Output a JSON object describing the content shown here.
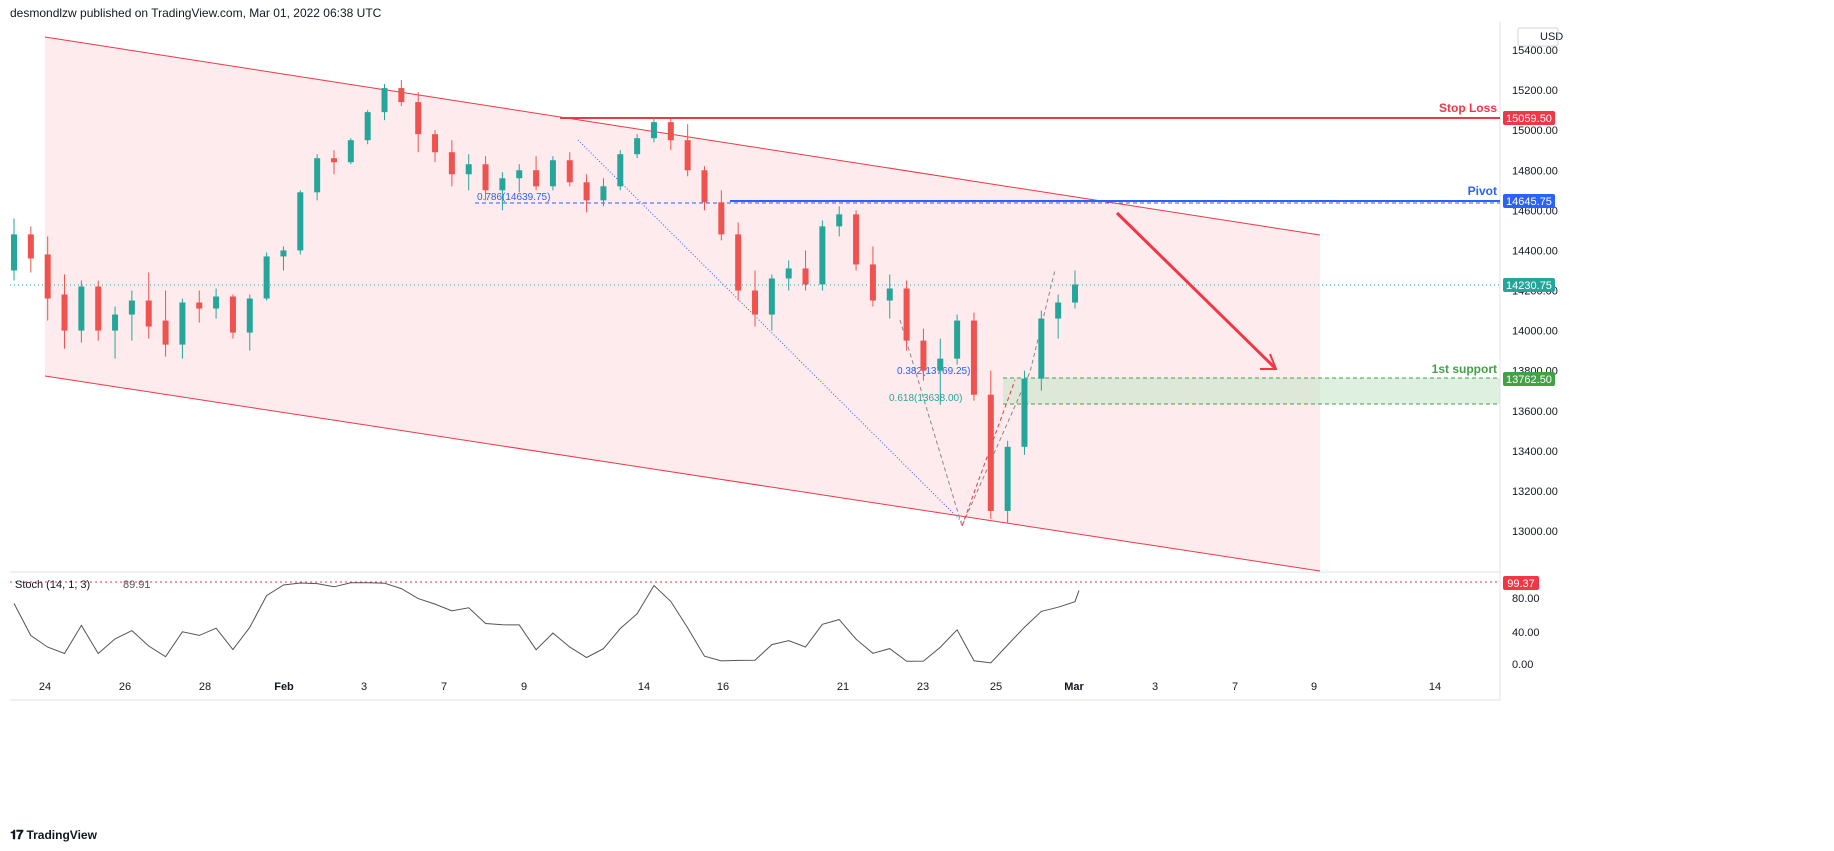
{
  "header": {
    "publisher": "desmondlzw published on TradingView.com, Mar 01, 2022 06:38 UTC"
  },
  "footer": {
    "logo": "𝟏𝟕",
    "brand": "TradingView"
  },
  "price_axis": {
    "currency": "USD",
    "ticks": [
      "15400.00",
      "15200.00",
      "15000.00",
      "14800.00",
      "14600.00",
      "14400.00",
      "14200.00",
      "14000.00",
      "13800.00",
      "13600.00",
      "13400.00",
      "13200.00",
      "13000.00"
    ]
  },
  "time_axis": {
    "ticks": [
      "24",
      "26",
      "28",
      "Feb",
      "3",
      "7",
      "9",
      "14",
      "16",
      "21",
      "23",
      "25",
      "Mar",
      "3",
      "7",
      "9",
      "14"
    ]
  },
  "colors": {
    "up": "#26a69a",
    "down": "#ef5350",
    "channel_fill": "#fde7ea",
    "channel_line": "#f23645",
    "pivot": "#2962ff",
    "support": "#43a047",
    "stop": "#f23645"
  },
  "levels": {
    "stop_loss": {
      "label": "Stop Loss",
      "price": "15059.50"
    },
    "pivot": {
      "label": "Pivot",
      "price": "14645.75"
    },
    "last": {
      "price": "14230.75"
    },
    "support": {
      "label": "1st support",
      "price": "13762.50"
    }
  },
  "fib": {
    "f786": "0.786(14639.75)",
    "f382": "0.382(13769.25)",
    "f618": "0.618(13638.00)"
  },
  "indicator": {
    "name": "Stoch (14, 1, 3)",
    "value": "89.91",
    "last_label": "99.37",
    "ticks": [
      "80.00",
      "40.00",
      "0.00"
    ]
  },
  "chart_data": {
    "type": "candlestick",
    "title": "",
    "ylabel": "USD",
    "ylim": [
      12800,
      15500
    ],
    "x_ticks": [
      "24",
      "26",
      "28",
      "Feb",
      "3",
      "7",
      "9",
      "14",
      "16",
      "21",
      "23",
      "25",
      "Mar",
      "3",
      "7",
      "9",
      "14"
    ],
    "ohlc_approx": [
      [
        14300,
        14560,
        14250,
        14480
      ],
      [
        14480,
        14520,
        14290,
        14360
      ],
      [
        14380,
        14470,
        14050,
        14160
      ],
      [
        14180,
        14280,
        13910,
        14000
      ],
      [
        14000,
        14250,
        13940,
        14220
      ],
      [
        14220,
        14250,
        13950,
        14000
      ],
      [
        14000,
        14120,
        13860,
        14080
      ],
      [
        14080,
        14200,
        13950,
        14150
      ],
      [
        14150,
        14290,
        13960,
        14020
      ],
      [
        14050,
        14200,
        13870,
        13930
      ],
      [
        13930,
        14160,
        13860,
        14140
      ],
      [
        14140,
        14200,
        14040,
        14110
      ],
      [
        14110,
        14210,
        14060,
        14170
      ],
      [
        14170,
        14180,
        13960,
        13990
      ],
      [
        13990,
        14180,
        13900,
        14160
      ],
      [
        14160,
        14390,
        14150,
        14370
      ],
      [
        14370,
        14420,
        14300,
        14400
      ],
      [
        14400,
        14700,
        14380,
        14690
      ],
      [
        14690,
        14880,
        14650,
        14860
      ],
      [
        14860,
        14900,
        14780,
        14840
      ],
      [
        14840,
        14960,
        14830,
        14950
      ],
      [
        14950,
        15100,
        14930,
        15090
      ],
      [
        15090,
        15230,
        15050,
        15210
      ],
      [
        15210,
        15250,
        15120,
        15140
      ],
      [
        15140,
        15190,
        14890,
        14980
      ],
      [
        14980,
        15000,
        14840,
        14890
      ],
      [
        14890,
        14950,
        14720,
        14780
      ],
      [
        14780,
        14880,
        14700,
        14830
      ],
      [
        14830,
        14870,
        14650,
        14700
      ],
      [
        14700,
        14790,
        14600,
        14760
      ],
      [
        14760,
        14830,
        14690,
        14800
      ],
      [
        14800,
        14870,
        14700,
        14720
      ],
      [
        14720,
        14870,
        14700,
        14850
      ],
      [
        14850,
        14890,
        14720,
        14740
      ],
      [
        14740,
        14780,
        14590,
        14650
      ],
      [
        14650,
        14760,
        14620,
        14720
      ],
      [
        14720,
        14900,
        14700,
        14880
      ],
      [
        14880,
        14980,
        14860,
        14960
      ],
      [
        14960,
        15060,
        14940,
        15040
      ],
      [
        15040,
        15060,
        14900,
        14950
      ],
      [
        14950,
        15030,
        14770,
        14800
      ],
      [
        14800,
        14820,
        14600,
        14640
      ],
      [
        14640,
        14700,
        14450,
        14480
      ],
      [
        14480,
        14540,
        14150,
        14200
      ],
      [
        14200,
        14300,
        14020,
        14080
      ],
      [
        14080,
        14280,
        14000,
        14260
      ],
      [
        14260,
        14350,
        14200,
        14310
      ],
      [
        14310,
        14400,
        14200,
        14230
      ],
      [
        14230,
        14550,
        14200,
        14520
      ],
      [
        14520,
        14620,
        14470,
        14580
      ],
      [
        14580,
        14600,
        14300,
        14330
      ],
      [
        14330,
        14420,
        14120,
        14150
      ],
      [
        14150,
        14280,
        14060,
        14210
      ],
      [
        14210,
        14250,
        13900,
        13950
      ],
      [
        13950,
        14010,
        13750,
        13800
      ],
      [
        13800,
        13960,
        13630,
        13860
      ],
      [
        13860,
        14080,
        13830,
        14050
      ],
      [
        14050,
        14090,
        13650,
        13680
      ],
      [
        13680,
        13800,
        13060,
        13100
      ],
      [
        13100,
        13450,
        13040,
        13420
      ],
      [
        13420,
        13800,
        13380,
        13760
      ],
      [
        13760,
        14100,
        13700,
        14060
      ],
      [
        14060,
        14180,
        13960,
        14140
      ],
      [
        14140,
        14300,
        14110,
        14230
      ]
    ],
    "stochastic": {
      "name": "Stoch (14, 1, 3)",
      "last": 89.91,
      "ylim": [
        0,
        100
      ]
    }
  }
}
